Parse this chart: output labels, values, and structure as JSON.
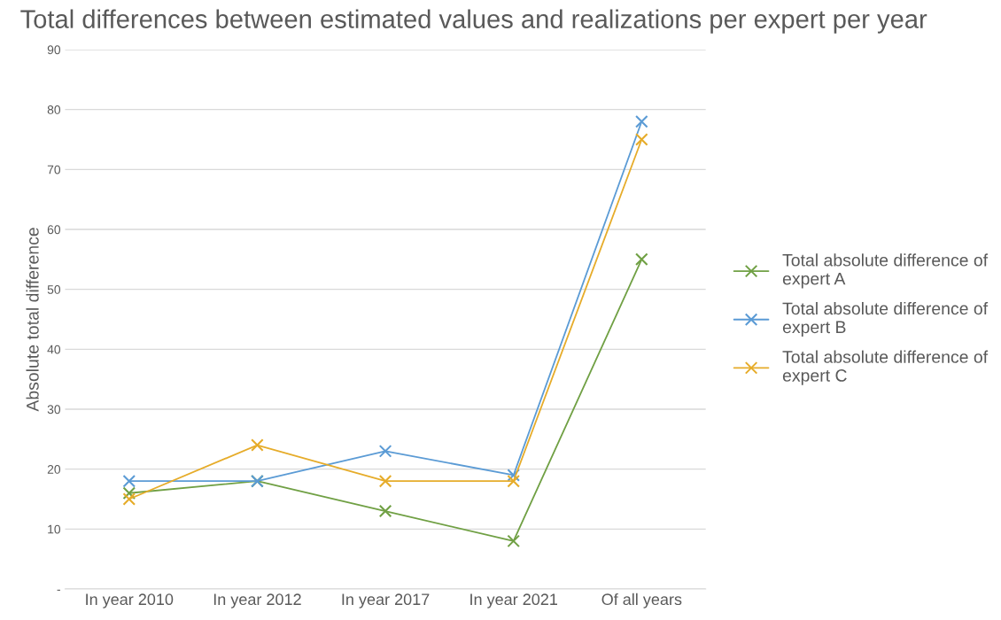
{
  "chart_data": {
    "type": "line",
    "title": "Total differences between estimated values and realizations per expert per year",
    "ylabel": "Absolute total difference",
    "categories": [
      "In year 2010",
      "In year 2012",
      "In year 2017",
      "In year 2021",
      "Of all years"
    ],
    "series": [
      {
        "name": "Total absolute difference of expert A",
        "color": "#70a044",
        "values": [
          16,
          18,
          13,
          8,
          55
        ]
      },
      {
        "name": "Total absolute difference of expert B",
        "color": "#5b9bd5",
        "values": [
          18,
          18,
          23,
          19,
          78
        ]
      },
      {
        "name": "Total absolute difference of expert C",
        "color": "#e6ac2a",
        "values": [
          15,
          24,
          18,
          18,
          75
        ]
      }
    ],
    "ylim": [
      0,
      90
    ],
    "yticks": [
      {
        "value": 0,
        "label": "-"
      },
      10,
      20,
      30,
      40,
      50,
      60,
      70,
      80,
      90
    ],
    "grid": "y",
    "legend": "right",
    "marker": "cross",
    "line_style": "solid"
  }
}
